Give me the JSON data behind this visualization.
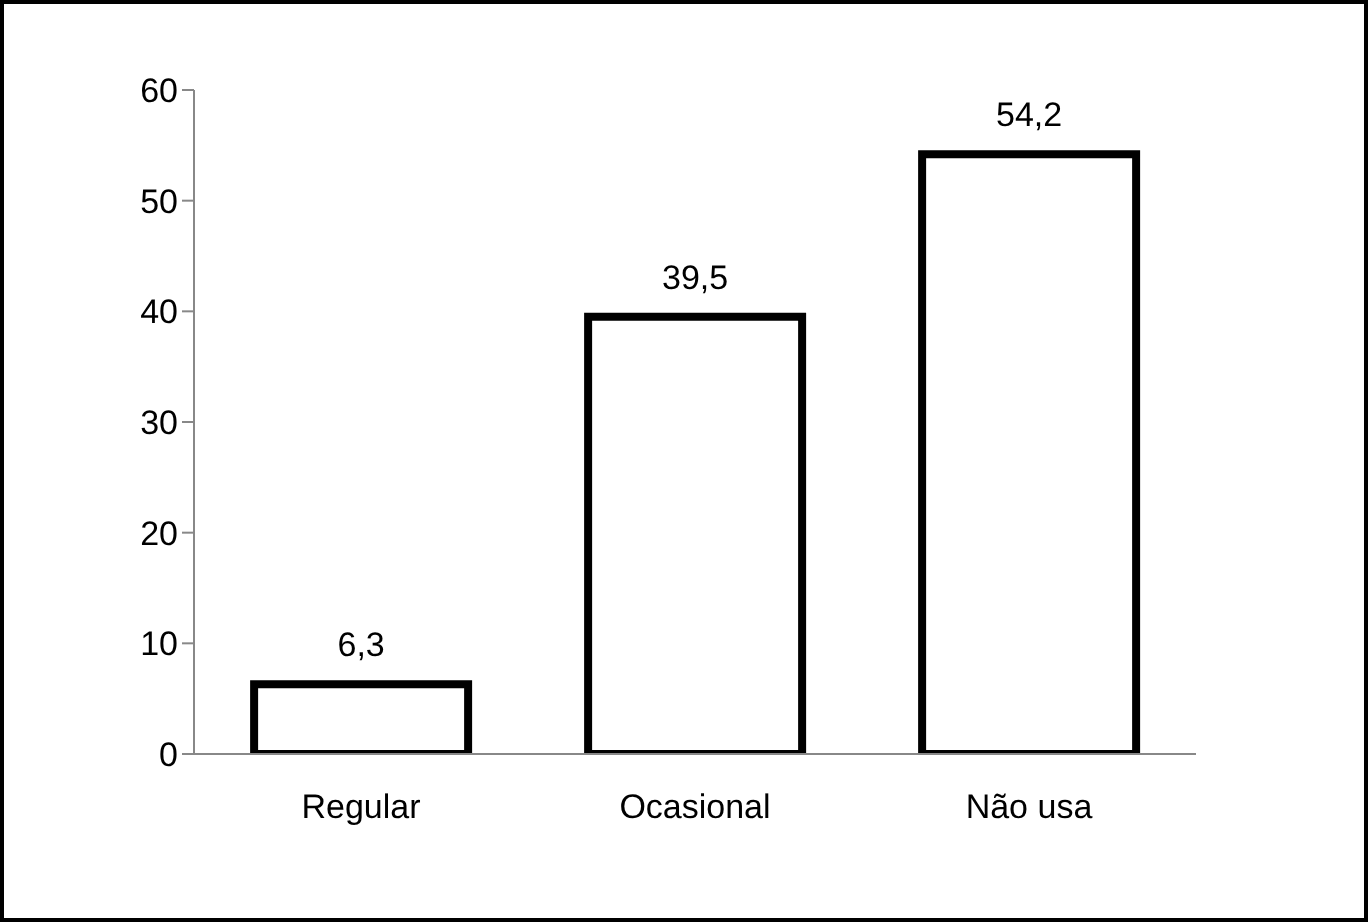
{
  "chart_data": {
    "type": "bar",
    "categories": [
      "Regular",
      "Ocasional",
      "Não usa"
    ],
    "values": [
      6.3,
      39.5,
      54.2
    ],
    "value_labels": [
      "6,3",
      "39,5",
      "54,2"
    ],
    "color": "#ffffff",
    "ylim": [
      0,
      60
    ],
    "yticks": [
      0,
      10,
      20,
      30,
      40,
      50,
      60
    ],
    "grid": false
  }
}
